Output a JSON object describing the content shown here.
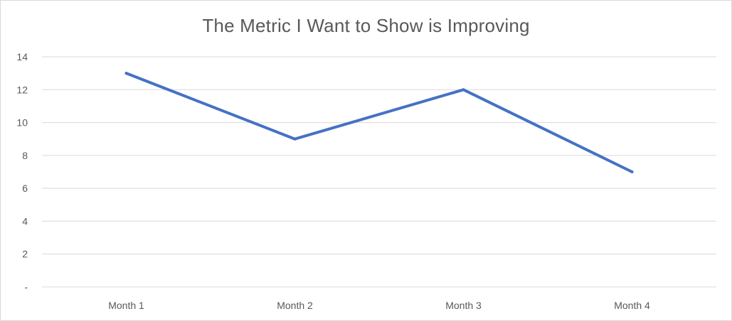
{
  "chart_data": {
    "type": "line",
    "title": "The Metric I Want to Show is Improving",
    "categories": [
      "Month 1",
      "Month 2",
      "Month 3",
      "Month 4"
    ],
    "series": [
      {
        "values": [
          13,
          9,
          12,
          7
        ]
      }
    ],
    "y_ticks": [
      "-",
      "2",
      "4",
      "6",
      "8",
      "10",
      "12",
      "14"
    ],
    "ylim": [
      0,
      14
    ],
    "y_step": 2,
    "grid": true,
    "legend": "none",
    "line_color": "#4472c4",
    "grid_color": "#d9d9d9",
    "text_color": "#595959"
  }
}
